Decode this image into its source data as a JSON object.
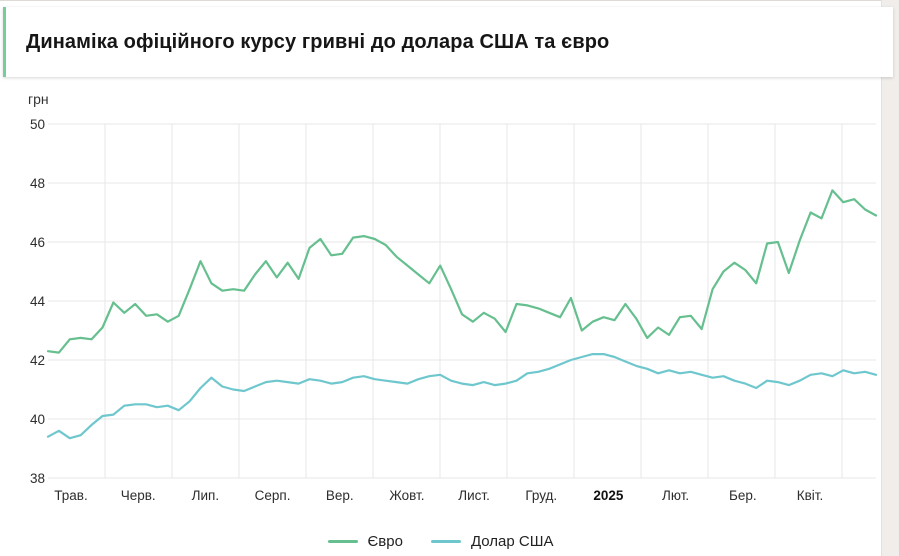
{
  "page": {
    "title": "Динаміка офіційного курсу гривні до долара США та євро",
    "accent_color": "#74ce9c",
    "background_color": "#ffffff",
    "gutter_color": "#f0edea"
  },
  "chart_data": {
    "type": "line",
    "title": "Динаміка офіційного курсу гривні до долара США та євро",
    "unit_label": "грн",
    "grid": true,
    "grid_color": "#e7e7e7",
    "legend_position": "bottom",
    "y_axis": {
      "min": 38,
      "max": 50,
      "step": 2,
      "ticks": [
        50,
        48,
        46,
        44,
        42,
        40,
        38
      ]
    },
    "x_axis": {
      "labels": [
        "Трав.",
        "Черв.",
        "Лип.",
        "Серп.",
        "Вер.",
        "Жовт.",
        "Лист.",
        "Груд.",
        "2025",
        "Лют.",
        "Бер.",
        "Квіт."
      ],
      "bold_label": "2025"
    },
    "series": [
      {
        "name": "Євро",
        "color": "#66bf8e",
        "values": [
          42.3,
          42.25,
          42.7,
          42.75,
          42.7,
          43.1,
          43.95,
          43.6,
          43.9,
          43.5,
          43.55,
          43.3,
          43.5,
          44.4,
          45.35,
          44.6,
          44.35,
          44.4,
          44.35,
          44.9,
          45.35,
          44.8,
          45.3,
          44.75,
          45.8,
          46.1,
          45.55,
          45.6,
          46.15,
          46.2,
          46.1,
          45.9,
          45.5,
          45.2,
          44.9,
          44.6,
          45.2,
          44.4,
          43.55,
          43.3,
          43.6,
          43.4,
          42.95,
          43.9,
          43.85,
          43.75,
          43.6,
          43.45,
          44.1,
          43.0,
          43.3,
          43.45,
          43.35,
          43.9,
          43.4,
          42.75,
          43.1,
          42.85,
          43.45,
          43.5,
          43.05,
          44.4,
          45.0,
          45.3,
          45.05,
          44.6,
          45.95,
          46.0,
          44.95,
          46.05,
          47.0,
          46.8,
          47.75,
          47.35,
          47.45,
          47.1,
          46.9
        ]
      },
      {
        "name": "Долар США",
        "color": "#6fc7ce",
        "values": [
          39.4,
          39.6,
          39.35,
          39.45,
          39.8,
          40.1,
          40.15,
          40.45,
          40.5,
          40.5,
          40.4,
          40.45,
          40.3,
          40.6,
          41.05,
          41.4,
          41.1,
          41.0,
          40.95,
          41.1,
          41.25,
          41.3,
          41.25,
          41.2,
          41.35,
          41.3,
          41.2,
          41.25,
          41.4,
          41.45,
          41.35,
          41.3,
          41.25,
          41.2,
          41.35,
          41.45,
          41.5,
          41.3,
          41.2,
          41.15,
          41.25,
          41.15,
          41.2,
          41.3,
          41.55,
          41.6,
          41.7,
          41.85,
          42.0,
          42.1,
          42.2,
          42.2,
          42.1,
          41.95,
          41.8,
          41.7,
          41.55,
          41.65,
          41.55,
          41.6,
          41.5,
          41.4,
          41.45,
          41.3,
          41.2,
          41.05,
          41.3,
          41.25,
          41.15,
          41.3,
          41.5,
          41.55,
          41.45,
          41.65,
          41.55,
          41.6,
          41.5
        ]
      }
    ]
  }
}
